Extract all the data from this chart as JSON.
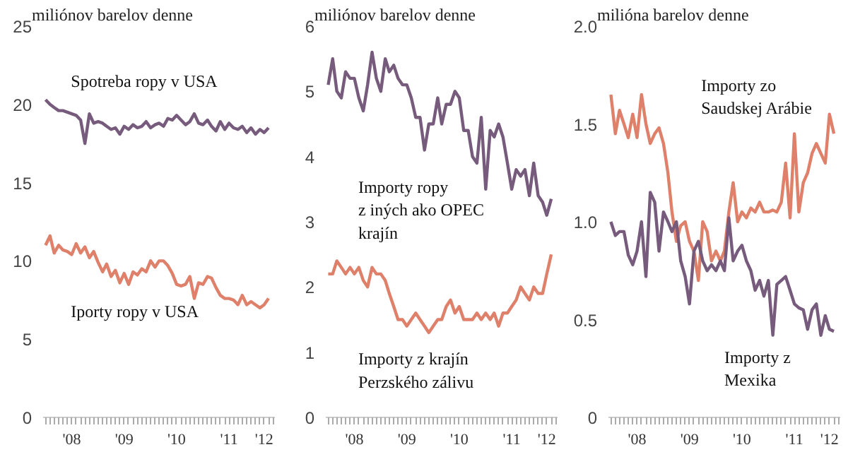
{
  "chart_data": [
    {
      "type": "line",
      "ylabel": "miliónov barelov denne",
      "x": [
        "2008-01",
        "2008-02",
        "2008-03",
        "2008-04",
        "2008-05",
        "2008-06",
        "2008-07",
        "2008-08",
        "2008-09",
        "2008-10",
        "2008-11",
        "2008-12",
        "2009-01",
        "2009-02",
        "2009-03",
        "2009-04",
        "2009-05",
        "2009-06",
        "2009-07",
        "2009-08",
        "2009-09",
        "2009-10",
        "2009-11",
        "2009-12",
        "2010-01",
        "2010-02",
        "2010-03",
        "2010-04",
        "2010-05",
        "2010-06",
        "2010-07",
        "2010-08",
        "2010-09",
        "2010-10",
        "2010-11",
        "2010-12",
        "2011-01",
        "2011-02",
        "2011-03",
        "2011-04",
        "2011-05",
        "2011-06",
        "2011-07",
        "2011-08",
        "2011-09",
        "2011-10",
        "2011-11",
        "2011-12",
        "2012-01",
        "2012-02",
        "2012-03",
        "2012-04"
      ],
      "series": [
        {
          "name": "Spotreba ropy v USA",
          "color": "#775b7c",
          "values": [
            20.3,
            20.0,
            19.8,
            19.6,
            19.6,
            19.5,
            19.4,
            19.3,
            19.0,
            17.5,
            19.4,
            18.8,
            18.9,
            18.8,
            18.6,
            18.4,
            18.5,
            18.1,
            18.6,
            18.4,
            18.7,
            18.5,
            18.6,
            18.9,
            18.5,
            18.7,
            18.8,
            18.6,
            19.1,
            19.0,
            19.3,
            19.0,
            18.7,
            18.9,
            19.4,
            18.8,
            18.7,
            19.0,
            18.6,
            18.3,
            18.9,
            18.4,
            18.8,
            18.5,
            18.4,
            18.6,
            18.2,
            18.5,
            18.1,
            18.4,
            18.2,
            18.5
          ]
        },
        {
          "name": "Iporty ropy v USA",
          "color": "#de806a",
          "values": [
            11.0,
            11.6,
            10.5,
            11.0,
            10.7,
            10.6,
            10.4,
            11.1,
            10.5,
            10.9,
            10.2,
            10.6,
            9.9,
            9.3,
            9.8,
            9.0,
            9.4,
            8.6,
            9.2,
            8.5,
            9.3,
            9.1,
            9.5,
            9.3,
            10.0,
            9.6,
            10.0,
            10.0,
            9.7,
            9.2,
            8.5,
            8.4,
            8.5,
            9.0,
            7.6,
            8.6,
            8.5,
            9.0,
            8.9,
            8.3,
            7.8,
            7.6,
            7.6,
            7.5,
            7.2,
            7.8,
            7.2,
            7.4,
            7.2,
            7.0,
            7.2,
            7.6
          ]
        }
      ],
      "xlim": [
        "2007-12-15",
        "2012-05-15"
      ],
      "xticks": [
        {
          "value": "2008-07",
          "label": "'08"
        },
        {
          "value": "2009-07",
          "label": "'09"
        },
        {
          "value": "2010-07",
          "label": "'10"
        },
        {
          "value": "2011-07",
          "label": "'11"
        },
        {
          "value": "2012-03",
          "label": "'12"
        }
      ],
      "ylim": [
        0,
        25
      ],
      "yticks": [
        0,
        5,
        10,
        15,
        20,
        25
      ]
    },
    {
      "type": "line",
      "ylabel": "miliónov barelov denne",
      "x": [
        "2008-01",
        "2008-02",
        "2008-03",
        "2008-04",
        "2008-05",
        "2008-06",
        "2008-07",
        "2008-08",
        "2008-09",
        "2008-10",
        "2008-11",
        "2008-12",
        "2009-01",
        "2009-02",
        "2009-03",
        "2009-04",
        "2009-05",
        "2009-06",
        "2009-07",
        "2009-08",
        "2009-09",
        "2009-10",
        "2009-11",
        "2009-12",
        "2010-01",
        "2010-02",
        "2010-03",
        "2010-04",
        "2010-05",
        "2010-06",
        "2010-07",
        "2010-08",
        "2010-09",
        "2010-10",
        "2010-11",
        "2010-12",
        "2011-01",
        "2011-02",
        "2011-03",
        "2011-04",
        "2011-05",
        "2011-06",
        "2011-07",
        "2011-08",
        "2011-09",
        "2011-10",
        "2011-11",
        "2011-12",
        "2012-01",
        "2012-02",
        "2012-03",
        "2012-04"
      ],
      "series": [
        {
          "name": "Importy ropy\nz iných ako OPEC\nkrajín",
          "color": "#775b7c",
          "values": [
            5.1,
            5.5,
            5.0,
            4.9,
            5.3,
            5.2,
            5.2,
            4.9,
            4.7,
            5.1,
            5.6,
            5.2,
            5.0,
            5.5,
            5.3,
            5.4,
            5.2,
            5.1,
            5.1,
            4.9,
            4.6,
            4.6,
            4.1,
            4.5,
            4.5,
            4.9,
            4.5,
            4.8,
            4.8,
            5.0,
            4.9,
            4.4,
            4.4,
            4.0,
            3.9,
            4.6,
            3.5,
            4.4,
            4.3,
            4.5,
            4.3,
            3.9,
            3.5,
            3.8,
            3.7,
            3.8,
            3.4,
            3.9,
            3.4,
            3.3,
            3.1,
            3.35
          ]
        },
        {
          "name": "Importy z krajín\nPerzského zálivu",
          "color": "#de806a",
          "values": [
            2.2,
            2.2,
            2.4,
            2.3,
            2.2,
            2.3,
            2.2,
            2.3,
            2.1,
            2.0,
            2.3,
            2.2,
            2.2,
            2.1,
            1.9,
            1.7,
            1.5,
            1.5,
            1.4,
            1.5,
            1.6,
            1.5,
            1.4,
            1.3,
            1.4,
            1.5,
            1.5,
            1.7,
            1.8,
            1.6,
            1.7,
            1.5,
            1.5,
            1.5,
            1.6,
            1.5,
            1.6,
            1.5,
            1.6,
            1.4,
            1.6,
            1.6,
            1.7,
            1.8,
            2.0,
            1.9,
            1.8,
            2.0,
            1.9,
            1.9,
            2.2,
            2.5
          ]
        }
      ],
      "xlim": [
        "2007-12-15",
        "2012-05-15"
      ],
      "xticks": [
        {
          "value": "2008-07",
          "label": "'08"
        },
        {
          "value": "2009-07",
          "label": "'09"
        },
        {
          "value": "2010-07",
          "label": "'10"
        },
        {
          "value": "2011-07",
          "label": "'11"
        },
        {
          "value": "2012-03",
          "label": "'12"
        }
      ],
      "ylim": [
        0,
        6
      ],
      "yticks": [
        0,
        1,
        2,
        3,
        4,
        5,
        6
      ]
    },
    {
      "type": "line",
      "ylabel": "milióna barelov denne",
      "x": [
        "2008-01",
        "2008-02",
        "2008-03",
        "2008-04",
        "2008-05",
        "2008-06",
        "2008-07",
        "2008-08",
        "2008-09",
        "2008-10",
        "2008-11",
        "2008-12",
        "2009-01",
        "2009-02",
        "2009-03",
        "2009-04",
        "2009-05",
        "2009-06",
        "2009-07",
        "2009-08",
        "2009-09",
        "2009-10",
        "2009-11",
        "2009-12",
        "2010-01",
        "2010-02",
        "2010-03",
        "2010-04",
        "2010-05",
        "2010-06",
        "2010-07",
        "2010-08",
        "2010-09",
        "2010-10",
        "2010-11",
        "2010-12",
        "2011-01",
        "2011-02",
        "2011-03",
        "2011-04",
        "2011-05",
        "2011-06",
        "2011-07",
        "2011-08",
        "2011-09",
        "2011-10",
        "2011-11",
        "2011-12",
        "2012-01",
        "2012-02",
        "2012-03",
        "2012-04"
      ],
      "series": [
        {
          "name": "Importy zo\nSaudskej Arábie",
          "color": "#de806a",
          "values": [
            1.65,
            1.45,
            1.57,
            1.5,
            1.43,
            1.55,
            1.43,
            1.65,
            1.5,
            1.4,
            1.45,
            1.48,
            1.4,
            1.25,
            1.05,
            0.9,
            0.98,
            1.0,
            0.9,
            0.85,
            0.7,
            1.0,
            0.95,
            0.8,
            0.85,
            0.8,
            0.85,
            1.05,
            1.2,
            1.0,
            1.05,
            1.02,
            1.07,
            1.05,
            1.1,
            1.05,
            1.05,
            1.06,
            1.05,
            1.1,
            1.3,
            1.02,
            1.45,
            1.05,
            1.2,
            1.25,
            1.35,
            1.4,
            1.35,
            1.3,
            1.55,
            1.45
          ]
        },
        {
          "name": "Importy z\nMexika",
          "color": "#775b7c",
          "values": [
            1.0,
            0.93,
            0.95,
            0.95,
            0.83,
            0.78,
            0.85,
            1.0,
            0.72,
            1.15,
            1.1,
            0.85,
            1.05,
            1.0,
            0.95,
            1.0,
            0.8,
            0.72,
            0.58,
            0.85,
            0.9,
            0.8,
            0.75,
            0.78,
            0.75,
            0.8,
            0.75,
            1.02,
            0.8,
            0.85,
            0.88,
            0.8,
            0.75,
            0.65,
            0.7,
            0.62,
            0.7,
            0.42,
            0.68,
            0.7,
            0.72,
            0.65,
            0.58,
            0.56,
            0.55,
            0.45,
            0.55,
            0.58,
            0.42,
            0.52,
            0.45,
            0.44
          ]
        }
      ],
      "xlim": [
        "2007-12-15",
        "2012-05-15"
      ],
      "xticks": [
        {
          "value": "2008-07",
          "label": "'08"
        },
        {
          "value": "2009-07",
          "label": "'09"
        },
        {
          "value": "2010-07",
          "label": "'10"
        },
        {
          "value": "2011-07",
          "label": "'11"
        },
        {
          "value": "2012-03",
          "label": "'12"
        }
      ],
      "ylim": [
        0,
        2
      ],
      "yticks": [
        0,
        0.5,
        {
          "value": 1,
          "label": "1.0"
        },
        1.5,
        {
          "value": 2,
          "label": "2.0"
        }
      ]
    }
  ]
}
